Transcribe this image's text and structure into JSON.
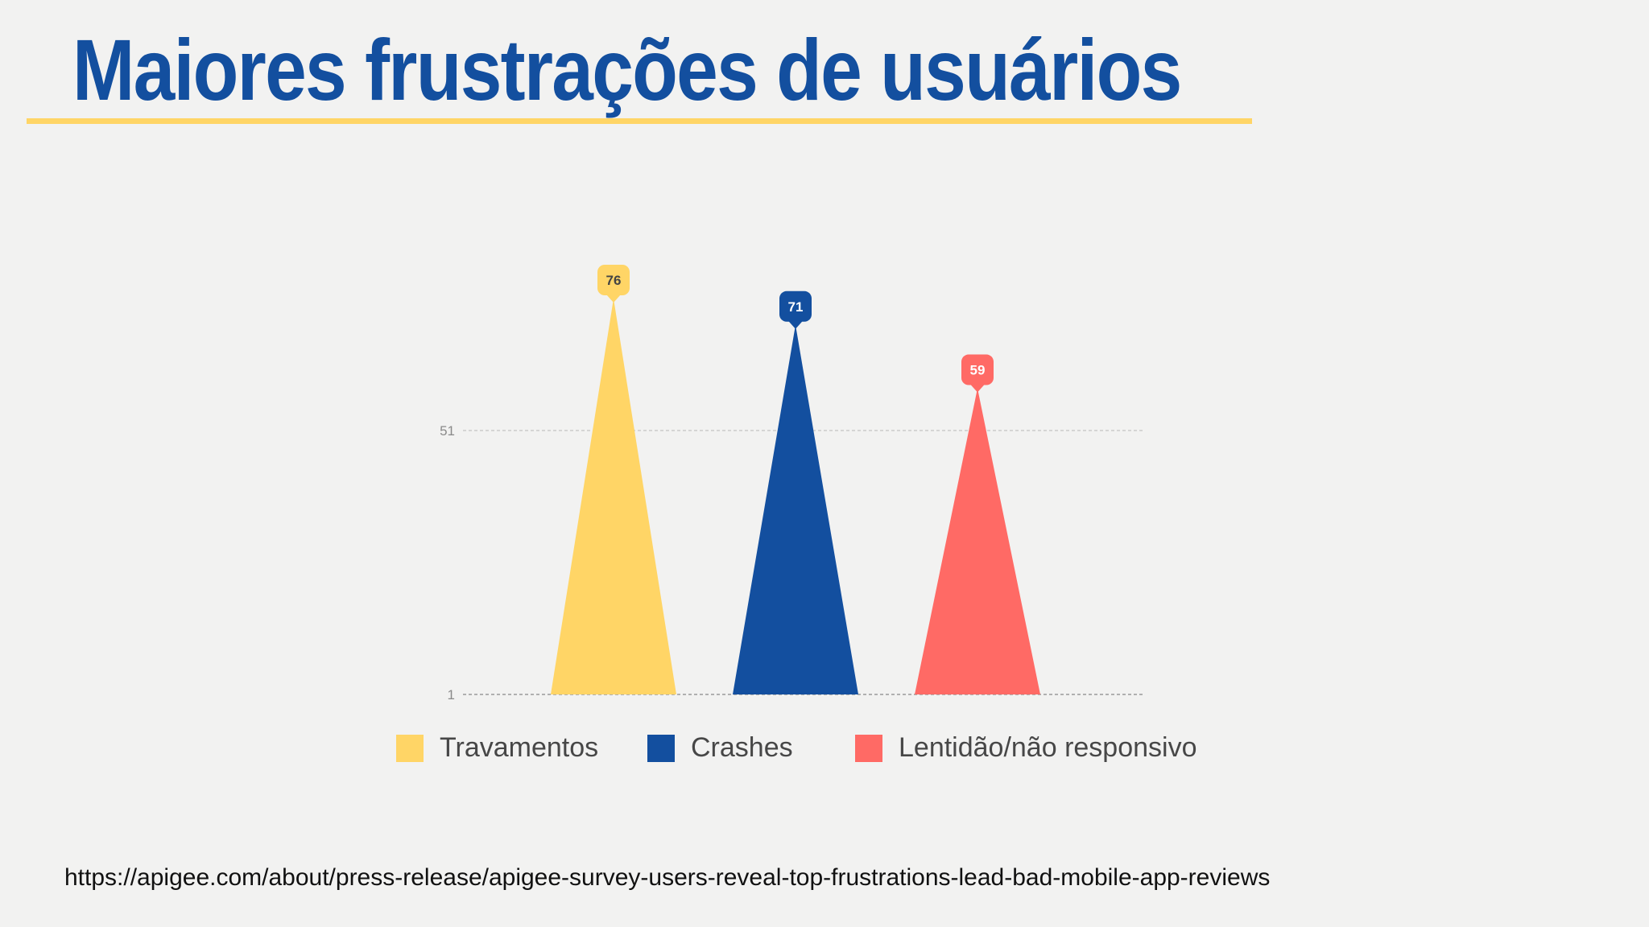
{
  "slide": {
    "title": "Maiores frustrações de usuários",
    "source_link": "https://apigee.com/about/press-release/apigee-survey-users-reveal-top-frustrations-lead-bad-mobile-app-reviews",
    "accent_color": "#ffd566",
    "title_color": "#134f9f"
  },
  "chart_data": {
    "type": "bar",
    "bar_shape": "triangle",
    "title": "",
    "xlabel": "",
    "ylabel": "",
    "categories": [
      "Travamentos",
      "Crashes",
      "Lentidão/não responsivo"
    ],
    "values": [
      76,
      71,
      59
    ],
    "data_labels": [
      "76",
      "71",
      "59"
    ],
    "colors": [
      "#ffd566",
      "#134f9f",
      "#ff6a65"
    ],
    "label_text_colors": [
      "#444444",
      "#ffffff",
      "#ffffff"
    ],
    "y_ticks": [
      1,
      51
    ],
    "y_tick_labels": [
      "1",
      "51"
    ],
    "ylim": [
      1,
      76
    ],
    "grid": true,
    "legend": [
      "Travamentos",
      "Crashes",
      "Lentidão/não responsivo"
    ],
    "legend_position": "bottom"
  }
}
